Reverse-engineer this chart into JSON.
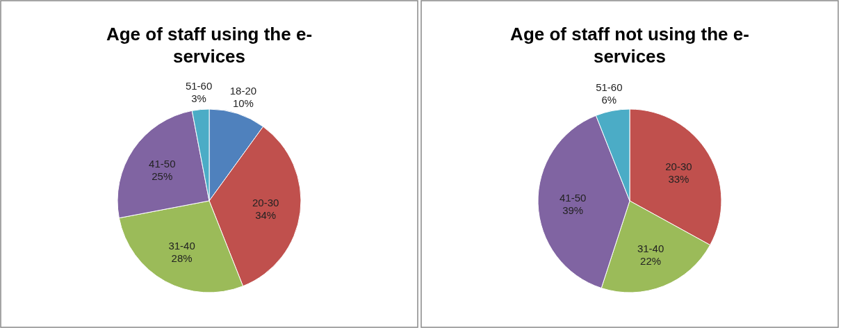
{
  "chart_data": [
    {
      "type": "pie",
      "title": "Age of staff using the e-services",
      "categories": [
        "18-20",
        "20-30",
        "31-40",
        "41-50",
        "51-60"
      ],
      "values": [
        10,
        34,
        28,
        25,
        3
      ],
      "value_labels": [
        "10%",
        "34%",
        "28%",
        "25%",
        "3%"
      ],
      "colors": [
        "#4f81bd",
        "#c0504d",
        "#9bbb59",
        "#8064a2",
        "#4bacc6"
      ]
    },
    {
      "type": "pie",
      "title": "Age of staff not using the e-services",
      "categories": [
        "20-30",
        "31-40",
        "41-50",
        "51-60"
      ],
      "values": [
        33,
        22,
        39,
        6
      ],
      "value_labels": [
        "33%",
        "22%",
        "39%",
        "6%"
      ],
      "colors": [
        "#c0504d",
        "#9bbb59",
        "#8064a2",
        "#4bacc6"
      ]
    }
  ]
}
